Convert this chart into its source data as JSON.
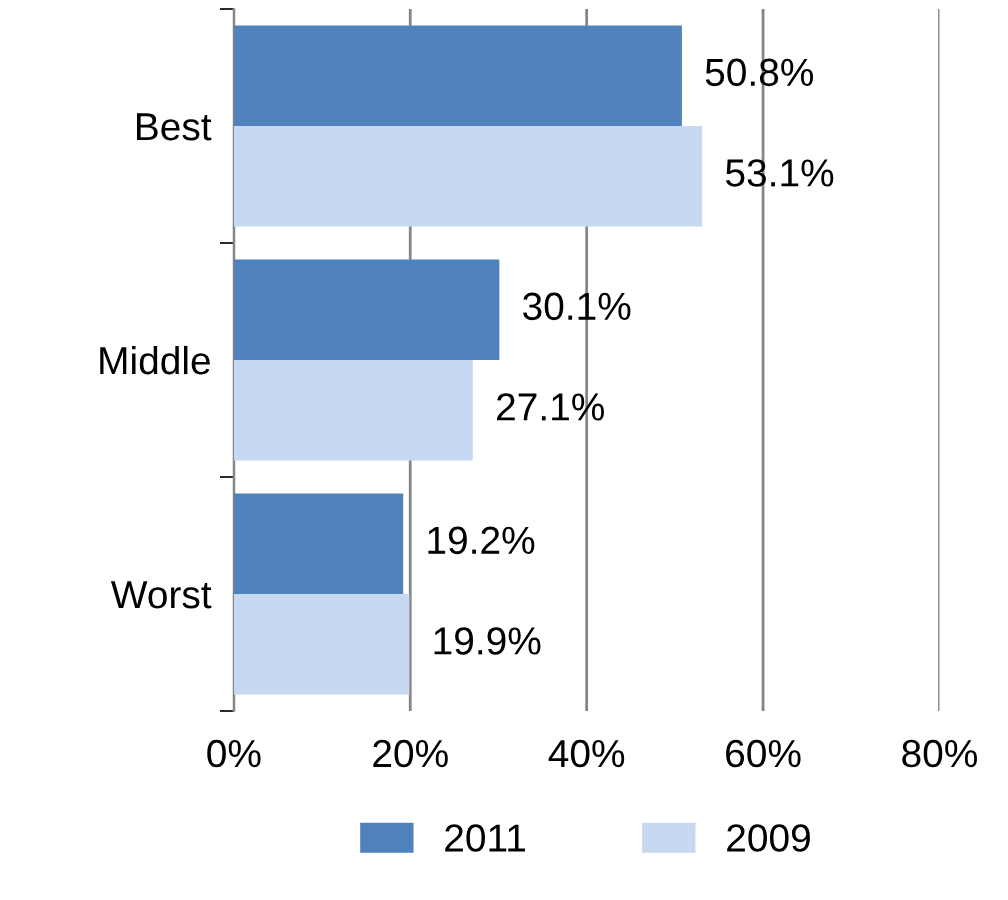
{
  "chart_data": {
    "type": "bar",
    "orientation": "horizontal",
    "categories": [
      "Best",
      "Middle",
      "Worst"
    ],
    "series": [
      {
        "name": "2011",
        "color": "#4f81bd",
        "values": [
          50.8,
          30.1,
          19.2
        ],
        "value_labels": [
          "50.8%",
          "30.1%",
          "19.2%"
        ]
      },
      {
        "name": "2009",
        "color": "#c6d9f1",
        "values": [
          53.1,
          27.1,
          19.9
        ],
        "value_labels": [
          "53.1%",
          "27.1%",
          "19.9%"
        ]
      }
    ],
    "xlim": [
      0,
      80
    ],
    "xticks": [
      {
        "value": 0,
        "label": "0%"
      },
      {
        "value": 20,
        "label": "20%"
      },
      {
        "value": 40,
        "label": "40%"
      },
      {
        "value": 60,
        "label": "60%"
      },
      {
        "value": 80,
        "label": "80%"
      }
    ],
    "grid": "x",
    "legend": "bottom"
  }
}
